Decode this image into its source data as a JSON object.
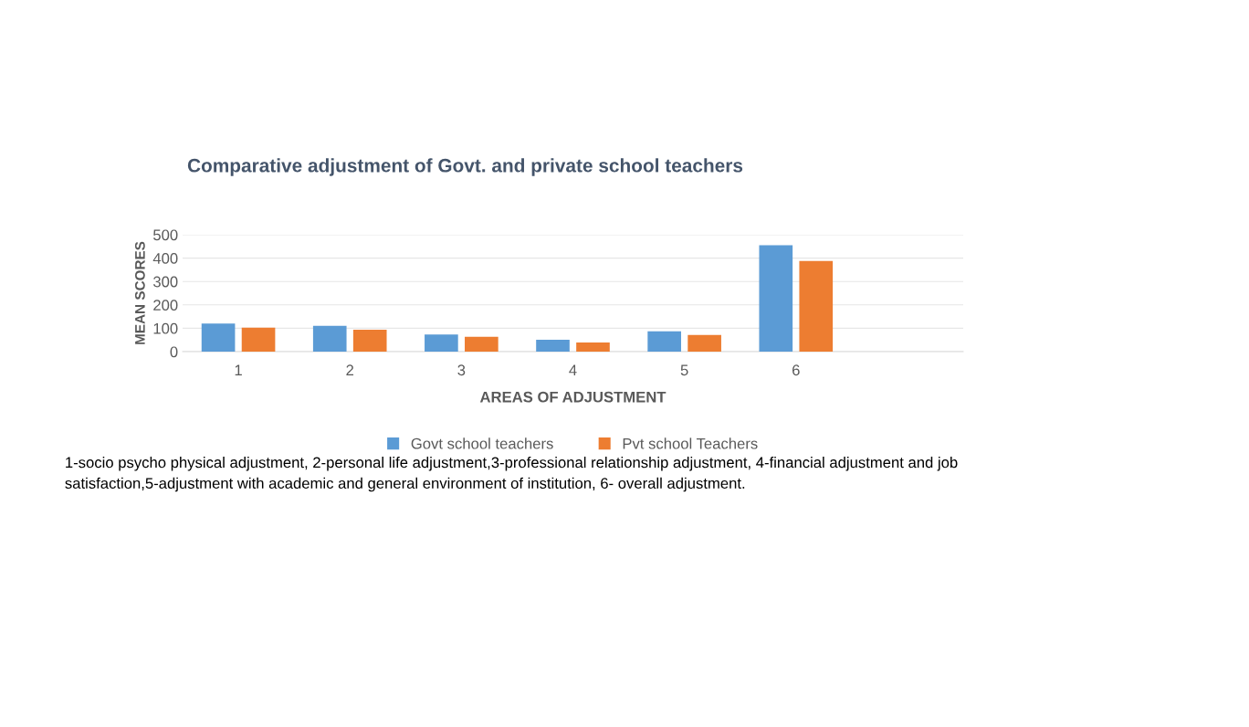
{
  "chart_data": {
    "type": "bar",
    "title": "Comparative adjustment of Govt. and private school teachers",
    "xlabel": "AREAS OF ADJUSTMENT",
    "ylabel": "MEAN SCORES",
    "categories": [
      "1",
      "2",
      "3",
      "4",
      "5",
      "6",
      null
    ],
    "series": [
      {
        "name": "Govt school teachers",
        "color": "#5b9bd5",
        "values": [
          120,
          110,
          73,
          51,
          87,
          455,
          null
        ]
      },
      {
        "name": "Pvt school Teachers",
        "color": "#ed7d31",
        "values": [
          103,
          94,
          63,
          39,
          71,
          388,
          null
        ]
      }
    ],
    "ylim": [
      0,
      500
    ],
    "yticks": [
      0,
      100,
      200,
      300,
      400,
      500
    ],
    "grid": "y",
    "legend": "bottom",
    "annotations": [
      "1-socio psycho physical adjustment, 2-personal life adjustment,3-professional relationship adjustment, 4-financial adjustment and job satisfaction,5-adjustment with academic and general environment of institution, 6- overall adjustment."
    ]
  }
}
